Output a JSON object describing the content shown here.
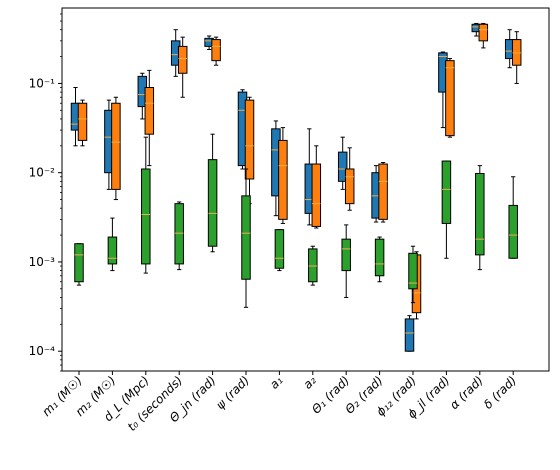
{
  "chart_data": {
    "type": "box",
    "title": "",
    "xlabel": "",
    "ylabel": "",
    "yscale": "log",
    "ylim": [
      6e-05,
      0.7
    ],
    "yticks": [
      {
        "value": 0.0001,
        "label": "10⁻⁴"
      },
      {
        "value": 0.001,
        "label": "10⁻³"
      },
      {
        "value": 0.01,
        "label": "10⁻²"
      },
      {
        "value": 0.1,
        "label": "10⁻¹"
      }
    ],
    "categories": [
      "m₁ (M☉)",
      "m₂ (M☉)",
      "d_L (Mpc)",
      "t₀ (seconds)",
      "Θ_jn (rad)",
      "ψ (rad)",
      "a₁",
      "a₂",
      "Θ₁ (rad)",
      "Θ₂ (rad)",
      "ϕ₁₂ (rad)",
      "ϕ_jl (rad)",
      "α (rad)",
      "δ (rad)"
    ],
    "series": [
      {
        "color": "#1f77b4",
        "boxes": [
          {
            "category": 0,
            "whislo": 0.02,
            "q1": 0.03,
            "med": 0.035,
            "q3": 0.06,
            "whishi": 0.09
          },
          {
            "category": 1,
            "whislo": 0.0065,
            "q1": 0.01,
            "med": 0.025,
            "q3": 0.05,
            "whishi": 0.065
          },
          {
            "category": 2,
            "whislo": 0.04,
            "q1": 0.055,
            "med": 0.075,
            "q3": 0.12,
            "whishi": 0.13
          },
          {
            "category": 3,
            "whislo": 0.12,
            "q1": 0.16,
            "med": 0.21,
            "q3": 0.3,
            "whishi": 0.4
          },
          {
            "category": 4,
            "whislo": 0.24,
            "q1": 0.26,
            "med": 0.3,
            "q3": 0.32,
            "whishi": 0.34
          },
          {
            "category": 5,
            "whislo": 0.011,
            "q1": 0.012,
            "med": 0.05,
            "q3": 0.08,
            "whishi": 0.085
          },
          {
            "category": 6,
            "whislo": 0.0033,
            "q1": 0.0055,
            "med": 0.018,
            "q3": 0.031,
            "whishi": 0.038
          },
          {
            "category": 7,
            "whislo": 0.0026,
            "q1": 0.0035,
            "med": 0.005,
            "q3": 0.0125,
            "whishi": 0.031
          },
          {
            "category": 8,
            "whislo": 0.0065,
            "q1": 0.008,
            "med": 0.011,
            "q3": 0.017,
            "whishi": 0.025
          },
          {
            "category": 9,
            "whislo": 0.0028,
            "q1": 0.0031,
            "med": 0.0055,
            "q3": 0.01,
            "whishi": 0.012
          },
          {
            "category": 10,
            "whislo": 0.0001,
            "q1": 0.0001,
            "med": 0.00016,
            "q3": 0.00023,
            "whishi": 0.00025
          },
          {
            "category": 11,
            "whislo": 0.032,
            "q1": 0.08,
            "med": 0.2,
            "q3": 0.22,
            "whishi": 0.225
          },
          {
            "category": 12,
            "whislo": 0.34,
            "q1": 0.38,
            "med": 0.43,
            "q3": 0.46,
            "whishi": 0.47
          },
          {
            "category": 13,
            "whislo": 0.15,
            "q1": 0.19,
            "med": 0.23,
            "q3": 0.31,
            "whishi": 0.4
          }
        ]
      },
      {
        "color": "#ff7f0e",
        "boxes": [
          {
            "category": 0,
            "whislo": 0.02,
            "q1": 0.023,
            "med": 0.04,
            "q3": 0.06,
            "whishi": 0.065
          },
          {
            "category": 1,
            "whislo": 0.005,
            "q1": 0.0065,
            "med": 0.022,
            "q3": 0.06,
            "whishi": 0.07
          },
          {
            "category": 2,
            "whislo": 0.012,
            "q1": 0.027,
            "med": 0.06,
            "q3": 0.09,
            "whishi": 0.14
          },
          {
            "category": 3,
            "whislo": 0.07,
            "q1": 0.13,
            "med": 0.19,
            "q3": 0.26,
            "whishi": 0.33
          },
          {
            "category": 4,
            "whislo": 0.16,
            "q1": 0.18,
            "med": 0.26,
            "q3": 0.31,
            "whishi": 0.33
          },
          {
            "category": 5,
            "whislo": 0.0045,
            "q1": 0.0085,
            "med": 0.02,
            "q3": 0.065,
            "whishi": 0.07
          },
          {
            "category": 6,
            "whislo": 0.0027,
            "q1": 0.003,
            "med": 0.012,
            "q3": 0.023,
            "whishi": 0.032
          },
          {
            "category": 7,
            "whislo": 0.0024,
            "q1": 0.0025,
            "med": 0.0045,
            "q3": 0.0125,
            "whishi": 0.02
          },
          {
            "category": 8,
            "whislo": 0.0038,
            "q1": 0.0045,
            "med": 0.009,
            "q3": 0.011,
            "whishi": 0.019
          },
          {
            "category": 9,
            "whislo": 0.0028,
            "q1": 0.003,
            "med": 0.008,
            "q3": 0.0125,
            "whishi": 0.013
          },
          {
            "category": 10,
            "whislo": 0.00023,
            "q1": 0.00027,
            "med": 0.00045,
            "q3": 0.0012,
            "whishi": 0.0013
          },
          {
            "category": 11,
            "whislo": 0.025,
            "q1": 0.026,
            "med": 0.15,
            "q3": 0.18,
            "whishi": 0.19
          },
          {
            "category": 12,
            "whislo": 0.25,
            "q1": 0.3,
            "med": 0.4,
            "q3": 0.46,
            "whishi": 0.47
          },
          {
            "category": 13,
            "whislo": 0.1,
            "q1": 0.16,
            "med": 0.22,
            "q3": 0.31,
            "whishi": 0.38
          }
        ]
      },
      {
        "color": "#2ca02c",
        "boxes": [
          {
            "category": 0,
            "whislo": 0.00055,
            "q1": 0.0006,
            "med": 0.0012,
            "q3": 0.0016,
            "whishi": 0.0016
          },
          {
            "category": 1,
            "whislo": 0.0008,
            "q1": 0.00095,
            "med": 0.0011,
            "q3": 0.0019,
            "whishi": 0.0031
          },
          {
            "category": 2,
            "whislo": 0.00075,
            "q1": 0.00095,
            "med": 0.0034,
            "q3": 0.011,
            "whishi": 0.025
          },
          {
            "category": 3,
            "whislo": 0.00082,
            "q1": 0.00095,
            "med": 0.0021,
            "q3": 0.0045,
            "whishi": 0.0047
          },
          {
            "category": 4,
            "whislo": 0.0013,
            "q1": 0.0015,
            "med": 0.0035,
            "q3": 0.014,
            "whishi": 0.027
          },
          {
            "category": 5,
            "whislo": 0.00031,
            "q1": 0.00064,
            "med": 0.0021,
            "q3": 0.0055,
            "whishi": 0.011
          },
          {
            "category": 6,
            "whislo": 0.0008,
            "q1": 0.00085,
            "med": 0.0011,
            "q3": 0.0023,
            "whishi": 0.0023
          },
          {
            "category": 7,
            "whislo": 0.00055,
            "q1": 0.0006,
            "med": 0.0009,
            "q3": 0.0014,
            "whishi": 0.0015
          },
          {
            "category": 8,
            "whislo": 0.0004,
            "q1": 0.0008,
            "med": 0.0014,
            "q3": 0.0018,
            "whishi": 0.0026
          },
          {
            "category": 9,
            "whislo": 0.0006,
            "q1": 0.0007,
            "med": 0.00095,
            "q3": 0.0018,
            "whishi": 0.0019
          },
          {
            "category": 10,
            "whislo": 0.00035,
            "q1": 0.0005,
            "med": 0.00058,
            "q3": 0.00125,
            "whishi": 0.0015
          },
          {
            "category": 11,
            "whislo": 0.0011,
            "q1": 0.0027,
            "med": 0.0065,
            "q3": 0.0135,
            "whishi": 0.0135
          },
          {
            "category": 12,
            "whislo": 0.00082,
            "q1": 0.0012,
            "med": 0.0018,
            "q3": 0.0098,
            "whishi": 0.012
          },
          {
            "category": 13,
            "whislo": 0.0011,
            "q1": 0.0011,
            "med": 0.002,
            "q3": 0.0043,
            "whishi": 0.009
          }
        ]
      }
    ],
    "median_color": "#e8b04a"
  }
}
